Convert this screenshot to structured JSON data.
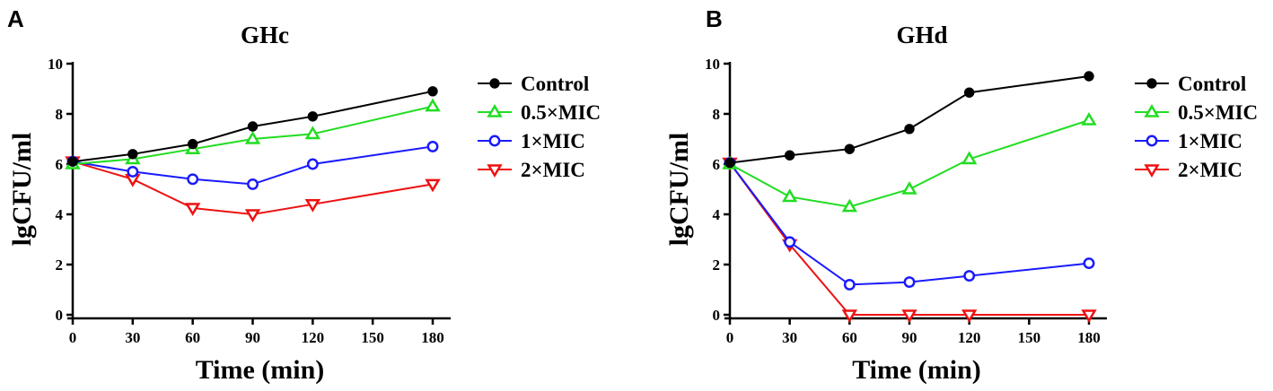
{
  "chart_data": [
    {
      "panel": "A",
      "type": "line",
      "title": "GHc",
      "xlabel": "Time (min)",
      "ylabel": "lgCFU/ml",
      "xlim": [
        0,
        180
      ],
      "ylim": [
        0,
        10
      ],
      "xticks": [
        0,
        30,
        60,
        90,
        120,
        150,
        180
      ],
      "yticks": [
        0,
        2,
        4,
        6,
        8,
        10
      ],
      "x": [
        0,
        30,
        60,
        90,
        120,
        180
      ],
      "series": [
        {
          "name": "Control",
          "marker": "circle-filled",
          "color": "#000000",
          "values": [
            6.1,
            6.4,
            6.8,
            7.5,
            7.9,
            8.9
          ]
        },
        {
          "name": "0.5×MIC",
          "marker": "triangle-up",
          "color": "#22dd22",
          "values": [
            6.0,
            6.2,
            6.6,
            7.0,
            7.2,
            8.3
          ]
        },
        {
          "name": "1×MIC",
          "marker": "circle-open",
          "color": "#1a1aff",
          "values": [
            6.1,
            5.7,
            5.4,
            5.2,
            6.0,
            6.7
          ]
        },
        {
          "name": "2×MIC",
          "marker": "triangle-down",
          "color": "#ee1111",
          "values": [
            6.1,
            5.4,
            4.25,
            4.0,
            4.4,
            5.2
          ]
        }
      ]
    },
    {
      "panel": "B",
      "type": "line",
      "title": "GHd",
      "xlabel": "Time (min)",
      "ylabel": "lgCFU/ml",
      "xlim": [
        0,
        180
      ],
      "ylim": [
        0,
        10
      ],
      "xticks": [
        0,
        30,
        60,
        90,
        120,
        150,
        180
      ],
      "yticks": [
        0,
        2,
        4,
        6,
        8,
        10
      ],
      "x": [
        0,
        30,
        60,
        90,
        120,
        180
      ],
      "series": [
        {
          "name": "Control",
          "marker": "circle-filled",
          "color": "#000000",
          "values": [
            6.05,
            6.35,
            6.6,
            7.4,
            8.85,
            9.5
          ]
        },
        {
          "name": "0.5×MIC",
          "marker": "triangle-up",
          "color": "#22dd22",
          "values": [
            6.0,
            4.7,
            4.3,
            5.0,
            6.2,
            7.75
          ]
        },
        {
          "name": "1×MIC",
          "marker": "circle-open",
          "color": "#1a1aff",
          "values": [
            6.05,
            2.9,
            1.2,
            1.3,
            1.55,
            2.05
          ]
        },
        {
          "name": "2×MIC",
          "marker": "triangle-down",
          "color": "#ee1111",
          "values": [
            6.05,
            2.8,
            0.0,
            0.0,
            0.0,
            0.0
          ]
        }
      ]
    }
  ]
}
